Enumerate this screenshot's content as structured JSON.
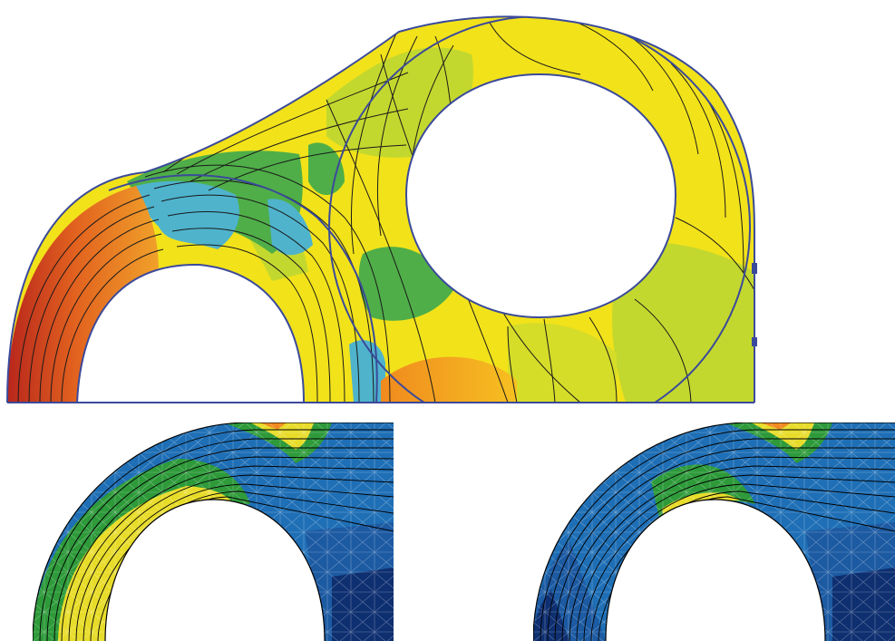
{
  "colors": {
    "outline": "#3b4a9a",
    "contour_line": "#1a1a1a",
    "yellow": "#f2e21a",
    "yellow_green": "#c3d82e",
    "green": "#4fae48",
    "light_blue": "#4fb3cc",
    "orange": "#f08a1e",
    "red": "#c0281e",
    "mesh_blue": "#1f6fb6",
    "mesh_mid_blue": "#1c5aa2",
    "mesh_dark_blue": "#0e2f70",
    "mesh_green": "#2e9a3a",
    "mesh_yellow": "#e8dc2a"
  },
  "panels": {
    "top": {
      "figure": "fem-stress-contour-lug-plate"
    },
    "bottom_left": {
      "figure": "fem-mesh-contour-arch-variant-a"
    },
    "bottom_right": {
      "figure": "fem-mesh-contour-arch-variant-b"
    }
  }
}
